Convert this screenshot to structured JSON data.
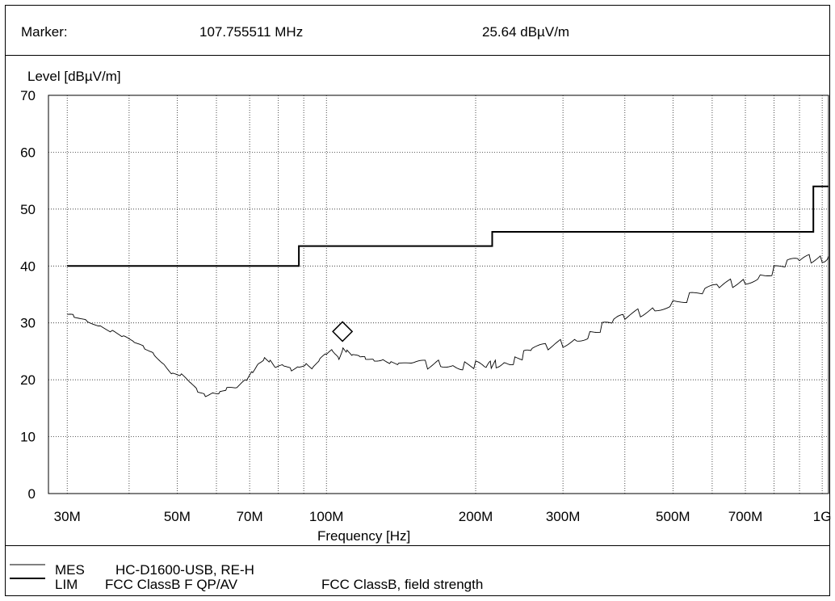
{
  "marker": {
    "label": "Marker:",
    "frequency": "107.755511 MHz",
    "level": "25.64 dBµV/m"
  },
  "legend": {
    "mes_tag": "MES",
    "mes_name": "HC-D1600-USB, RE-H",
    "lim_tag": "LIM",
    "lim_name": "FCC ClassB F QP/AV",
    "lim_desc": "FCC ClassB, field strength"
  },
  "chart_data": {
    "type": "line",
    "xlabel": "Frequency [Hz]",
    "ylabel": "Level [dBµV/m]",
    "xscale": "log",
    "xlim": [
      30,
      1000
    ],
    "ylim": [
      0,
      70
    ],
    "grid": true,
    "yticks": [
      0,
      10,
      20,
      30,
      40,
      50,
      60,
      70
    ],
    "xticks": [
      {
        "value": 30,
        "label": "30M"
      },
      {
        "value": 50,
        "label": "50M"
      },
      {
        "value": 70,
        "label": "70M"
      },
      {
        "value": 100,
        "label": "100M"
      },
      {
        "value": 200,
        "label": "200M"
      },
      {
        "value": 300,
        "label": "300M"
      },
      {
        "value": 500,
        "label": "500M"
      },
      {
        "value": 700,
        "label": "700M"
      },
      {
        "value": 1000,
        "label": "1G"
      }
    ],
    "xgrid": [
      30,
      40,
      50,
      60,
      70,
      80,
      90,
      100,
      200,
      300,
      400,
      500,
      600,
      700,
      800,
      900,
      1000
    ],
    "series": [
      {
        "name": "MES",
        "style": "measurement",
        "x": [
          30,
          31,
          33,
          35,
          37,
          39,
          41,
          43,
          45,
          47,
          49,
          51,
          53,
          55,
          57,
          59,
          61,
          63,
          66,
          69,
          71,
          73,
          75,
          77,
          79,
          82,
          85,
          88,
          91,
          94,
          97,
          100,
          103,
          106,
          108,
          110,
          113,
          117,
          120,
          125,
          130,
          135,
          140,
          150,
          160,
          170,
          180,
          190,
          200,
          210,
          215,
          220,
          230,
          240,
          250,
          260,
          280,
          300,
          320,
          340,
          360,
          380,
          400,
          430,
          460,
          500,
          540,
          580,
          620,
          660,
          700,
          750,
          800,
          850,
          900,
          950,
          1000,
          1030
        ],
        "y": [
          31.5,
          31.2,
          30.4,
          29.5,
          28.5,
          27.5,
          26.5,
          25.6,
          24.5,
          22.8,
          21.0,
          20.8,
          19.5,
          18.0,
          17.3,
          17.8,
          17.8,
          18.4,
          18.5,
          20.0,
          21.5,
          23.0,
          23.8,
          23.2,
          22.0,
          22.5,
          21.8,
          22.4,
          22.8,
          22.0,
          23.5,
          24.5,
          25.2,
          23.8,
          25.6,
          25.0,
          24.2,
          24.0,
          23.8,
          23.5,
          23.6,
          23.0,
          22.7,
          22.8,
          22.5,
          23.2,
          22.8,
          22.6,
          22.4,
          21.8,
          22.5,
          23.0,
          23.4,
          23.6,
          24.2,
          25.0,
          25.6,
          26.6,
          27.4,
          28.2,
          29.2,
          30.0,
          30.8,
          31.9,
          32.8,
          33.8,
          34.5,
          35.3,
          36.2,
          37.0,
          37.6,
          38.5,
          39.3,
          40.2,
          40.8,
          41.2,
          41.5,
          41.8
        ]
      },
      {
        "name": "LIM",
        "style": "limit",
        "x": [
          30,
          88,
          88,
          216,
          216,
          960,
          960,
          1030
        ],
        "y": [
          40,
          40,
          43.5,
          43.5,
          46,
          46,
          54,
          54
        ]
      }
    ],
    "markers": [
      {
        "x": 107.755511,
        "y": 25.64,
        "shape": "diamond"
      }
    ]
  }
}
